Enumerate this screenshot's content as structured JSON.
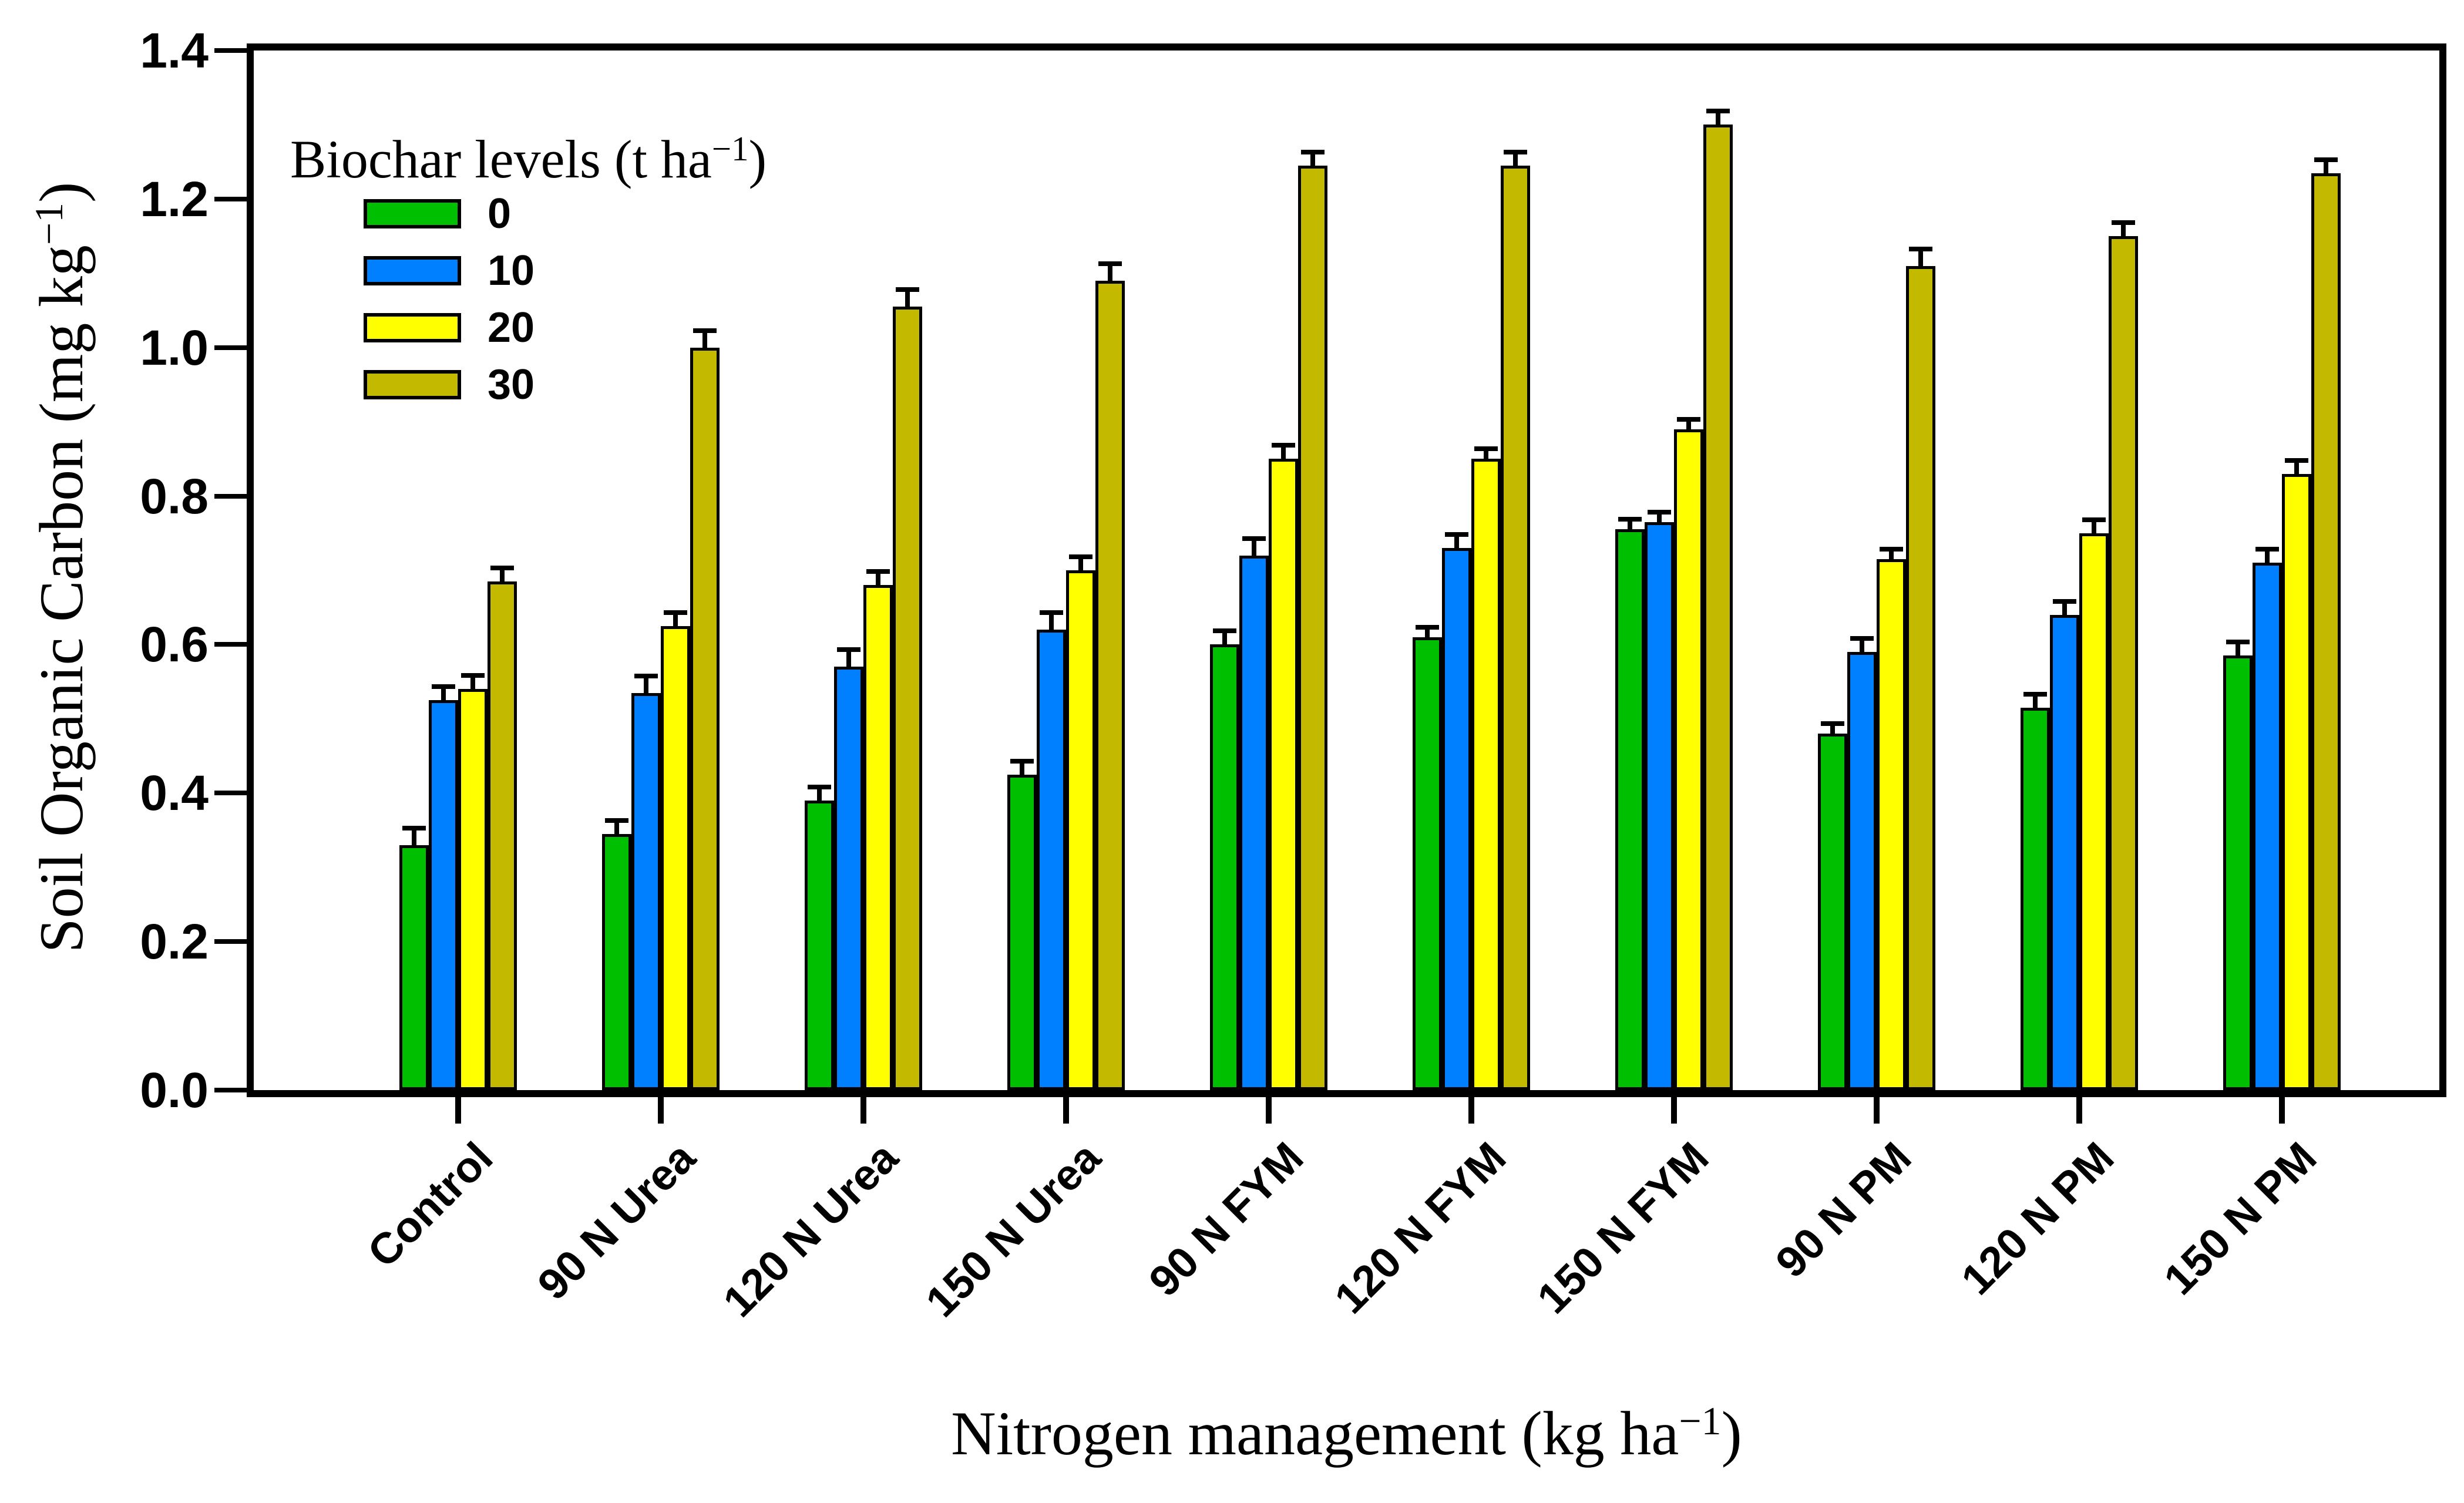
{
  "chart_data": {
    "type": "bar",
    "title": "",
    "xlabel": "Nitrogen management (kg ha−1)",
    "xlabel_parts": {
      "pre": "Nitrogen management (kg ha",
      "sup": "−1",
      "post": ")"
    },
    "ylabel": "Soil Organic Carbon (mg kg−1)",
    "ylabel_parts": {
      "pre": "Soil Organic Carbon (mg kg",
      "sup": "−1",
      "post": ")"
    },
    "legend": {
      "title": "Biochar levels (t ha−1)",
      "title_parts": {
        "pre": "Biochar levels (t ha",
        "sup": "−1",
        "post": ")"
      },
      "position": "upper-left",
      "entries": [
        "0",
        "10",
        "20",
        "30"
      ]
    },
    "categories": [
      "Control",
      "90 N Urea",
      "120 N Urea",
      "150 N Urea",
      "90 N FYM",
      "120 N FYM",
      "150 N FYM",
      "90 N PM",
      "120 N PM",
      "150 N PM"
    ],
    "series": [
      {
        "name": "0",
        "color": "#00be00",
        "values": [
          0.33,
          0.345,
          0.39,
          0.425,
          0.6,
          0.61,
          0.755,
          0.48,
          0.515,
          0.585
        ],
        "errors": [
          0.02,
          0.015,
          0.015,
          0.015,
          0.015,
          0.01,
          0.01,
          0.01,
          0.015,
          0.015
        ]
      },
      {
        "name": "10",
        "color": "#0080ff",
        "values": [
          0.525,
          0.535,
          0.57,
          0.62,
          0.72,
          0.73,
          0.765,
          0.59,
          0.64,
          0.71
        ],
        "errors": [
          0.015,
          0.02,
          0.02,
          0.02,
          0.02,
          0.015,
          0.01,
          0.015,
          0.015,
          0.015
        ]
      },
      {
        "name": "20",
        "color": "#ffff00",
        "values": [
          0.54,
          0.625,
          0.68,
          0.7,
          0.85,
          0.85,
          0.89,
          0.715,
          0.75,
          0.83
        ],
        "errors": [
          0.015,
          0.015,
          0.015,
          0.015,
          0.015,
          0.01,
          0.01,
          0.01,
          0.015,
          0.015
        ]
      },
      {
        "name": "30",
        "color": "#c3ba00",
        "values": [
          0.685,
          1.0,
          1.055,
          1.09,
          1.245,
          1.245,
          1.3,
          1.11,
          1.15,
          1.235
        ],
        "errors": [
          0.015,
          0.02,
          0.02,
          0.02,
          0.015,
          0.015,
          0.015,
          0.02,
          0.015,
          0.015
        ]
      }
    ],
    "yticks": [
      0.0,
      0.2,
      0.4,
      0.6,
      0.8,
      1.0,
      1.2,
      1.4
    ],
    "ylim": [
      0,
      1.4
    ],
    "grid": false,
    "error_bars": "upper, capped",
    "bar_border_color": "#000000",
    "frame": "full box, ticks outward"
  }
}
